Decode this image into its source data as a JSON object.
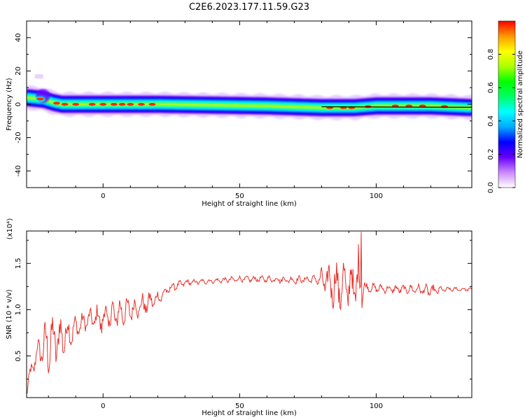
{
  "title": "C2E6.2023.177.11.59.G23",
  "chart_data": [
    {
      "type": "heatmap",
      "xlabel": "Height of straight line (km)",
      "ylabel": "Frequency (Hz)",
      "xlim": [
        -28,
        135
      ],
      "ylim": [
        -50,
        50
      ],
      "xticks": [
        0,
        50,
        100
      ],
      "yticks": [
        -40,
        -20,
        0,
        20,
        40
      ],
      "colorbar": {
        "label": "Normalized spectral amplitude",
        "range": [
          0,
          1
        ],
        "ticks": [
          0.0,
          0.2,
          0.4,
          0.6,
          0.8
        ],
        "tick_labels": [
          "0.0",
          "0.2",
          "0.4",
          "0.6",
          "0.8"
        ],
        "colors": [
          "#ffffff",
          "#cc88ff",
          "#6600ff",
          "#0000ff",
          "#00aaff",
          "#00ffff",
          "#00ff66",
          "#00ff00",
          "#aaff00",
          "#ffff00",
          "#ff9900",
          "#ff0000"
        ]
      },
      "band_center": [
        {
          "x": -28,
          "y": 4
        },
        {
          "x": -22,
          "y": 3
        },
        {
          "x": -18,
          "y": 1
        },
        {
          "x": -15,
          "y": 0
        },
        {
          "x": 0,
          "y": 0
        },
        {
          "x": 20,
          "y": 0
        },
        {
          "x": 60,
          "y": -1
        },
        {
          "x": 80,
          "y": -2
        },
        {
          "x": 92,
          "y": -2
        },
        {
          "x": 100,
          "y": -1
        },
        {
          "x": 120,
          "y": -1
        },
        {
          "x": 135,
          "y": -2
        }
      ],
      "hot_spots_x": [
        -23,
        -17,
        -14,
        -10,
        -4,
        0,
        4,
        7,
        10,
        14,
        18,
        83,
        88,
        91,
        97,
        107,
        112,
        117,
        125
      ]
    },
    {
      "type": "line",
      "xlabel": "Height of straight line (km)",
      "ylabel": "SNR (10 * v/v)",
      "y_multiplier_label": "(x10⁴)",
      "xlim": [
        -28,
        135
      ],
      "ylim": [
        0.05,
        1.85
      ],
      "xticks": [
        0,
        50,
        100
      ],
      "yticks": [
        0.5,
        1.0,
        1.5
      ],
      "ytick_labels": [
        "0.5",
        "1.0",
        "1.5"
      ],
      "color": "#e8302a",
      "envelope": [
        {
          "x": -28,
          "mean": 0.15,
          "amp": 0.12
        },
        {
          "x": -24,
          "mean": 0.55,
          "amp": 0.14
        },
        {
          "x": -20,
          "mean": 0.62,
          "amp": 0.38
        },
        {
          "x": -15,
          "mean": 0.7,
          "amp": 0.3
        },
        {
          "x": -10,
          "mean": 0.8,
          "amp": 0.15
        },
        {
          "x": -5,
          "mean": 0.9,
          "amp": 0.12
        },
        {
          "x": 0,
          "mean": 0.9,
          "amp": 0.22
        },
        {
          "x": 5,
          "mean": 0.95,
          "amp": 0.22
        },
        {
          "x": 10,
          "mean": 1.0,
          "amp": 0.15
        },
        {
          "x": 15,
          "mean": 1.05,
          "amp": 0.15
        },
        {
          "x": 20,
          "mean": 1.12,
          "amp": 0.1
        },
        {
          "x": 25,
          "mean": 1.24,
          "amp": 0.06
        },
        {
          "x": 30,
          "mean": 1.29,
          "amp": 0.04
        },
        {
          "x": 40,
          "mean": 1.31,
          "amp": 0.03
        },
        {
          "x": 50,
          "mean": 1.33,
          "amp": 0.04
        },
        {
          "x": 60,
          "mean": 1.33,
          "amp": 0.04
        },
        {
          "x": 70,
          "mean": 1.32,
          "amp": 0.05
        },
        {
          "x": 78,
          "mean": 1.33,
          "amp": 0.05
        },
        {
          "x": 82,
          "mean": 1.3,
          "amp": 0.25
        },
        {
          "x": 86,
          "mean": 1.25,
          "amp": 0.35
        },
        {
          "x": 90,
          "mean": 1.25,
          "amp": 0.35
        },
        {
          "x": 94,
          "mean": 1.3,
          "amp": 0.45
        },
        {
          "x": 96,
          "mean": 1.24,
          "amp": 0.06
        },
        {
          "x": 105,
          "mean": 1.22,
          "amp": 0.05
        },
        {
          "x": 115,
          "mean": 1.22,
          "amp": 0.06
        },
        {
          "x": 120,
          "mean": 1.2,
          "amp": 0.08
        },
        {
          "x": 126,
          "mean": 1.22,
          "amp": 0.03
        },
        {
          "x": 135,
          "mean": 1.22,
          "amp": 0.02
        }
      ],
      "peak": {
        "x": 94.5,
        "y": 1.84
      }
    }
  ]
}
